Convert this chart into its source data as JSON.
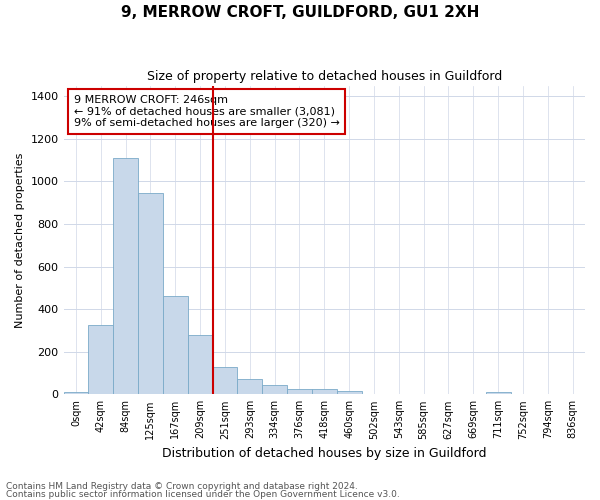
{
  "title": "9, MERROW CROFT, GUILDFORD, GU1 2XH",
  "subtitle": "Size of property relative to detached houses in Guildford",
  "xlabel": "Distribution of detached houses by size in Guildford",
  "ylabel": "Number of detached properties",
  "bar_labels": [
    "0sqm",
    "42sqm",
    "84sqm",
    "125sqm",
    "167sqm",
    "209sqm",
    "251sqm",
    "293sqm",
    "334sqm",
    "376sqm",
    "418sqm",
    "460sqm",
    "502sqm",
    "543sqm",
    "585sqm",
    "627sqm",
    "669sqm",
    "711sqm",
    "752sqm",
    "794sqm",
    "836sqm"
  ],
  "bar_values": [
    10,
    325,
    1110,
    945,
    460,
    280,
    130,
    70,
    45,
    25,
    25,
    15,
    0,
    0,
    0,
    0,
    0,
    10,
    0,
    0,
    0
  ],
  "bar_color": "#c8d8ea",
  "bar_edge_color": "#7aaac8",
  "vline_index": 6,
  "vline_color": "#cc0000",
  "marker_label": "9 MERROW CROFT: 246sqm",
  "annotation_line1": "← 91% of detached houses are smaller (3,081)",
  "annotation_line2": "9% of semi-detached houses are larger (320) →",
  "annotation_box_color": "#ffffff",
  "annotation_box_edge": "#cc0000",
  "ylim": [
    0,
    1450
  ],
  "yticks": [
    0,
    200,
    400,
    600,
    800,
    1000,
    1200,
    1400
  ],
  "footer_line1": "Contains HM Land Registry data © Crown copyright and database right 2024.",
  "footer_line2": "Contains public sector information licensed under the Open Government Licence v3.0.",
  "bg_color": "#ffffff",
  "plot_bg_color": "#ffffff",
  "grid_color": "#d0d8e8"
}
